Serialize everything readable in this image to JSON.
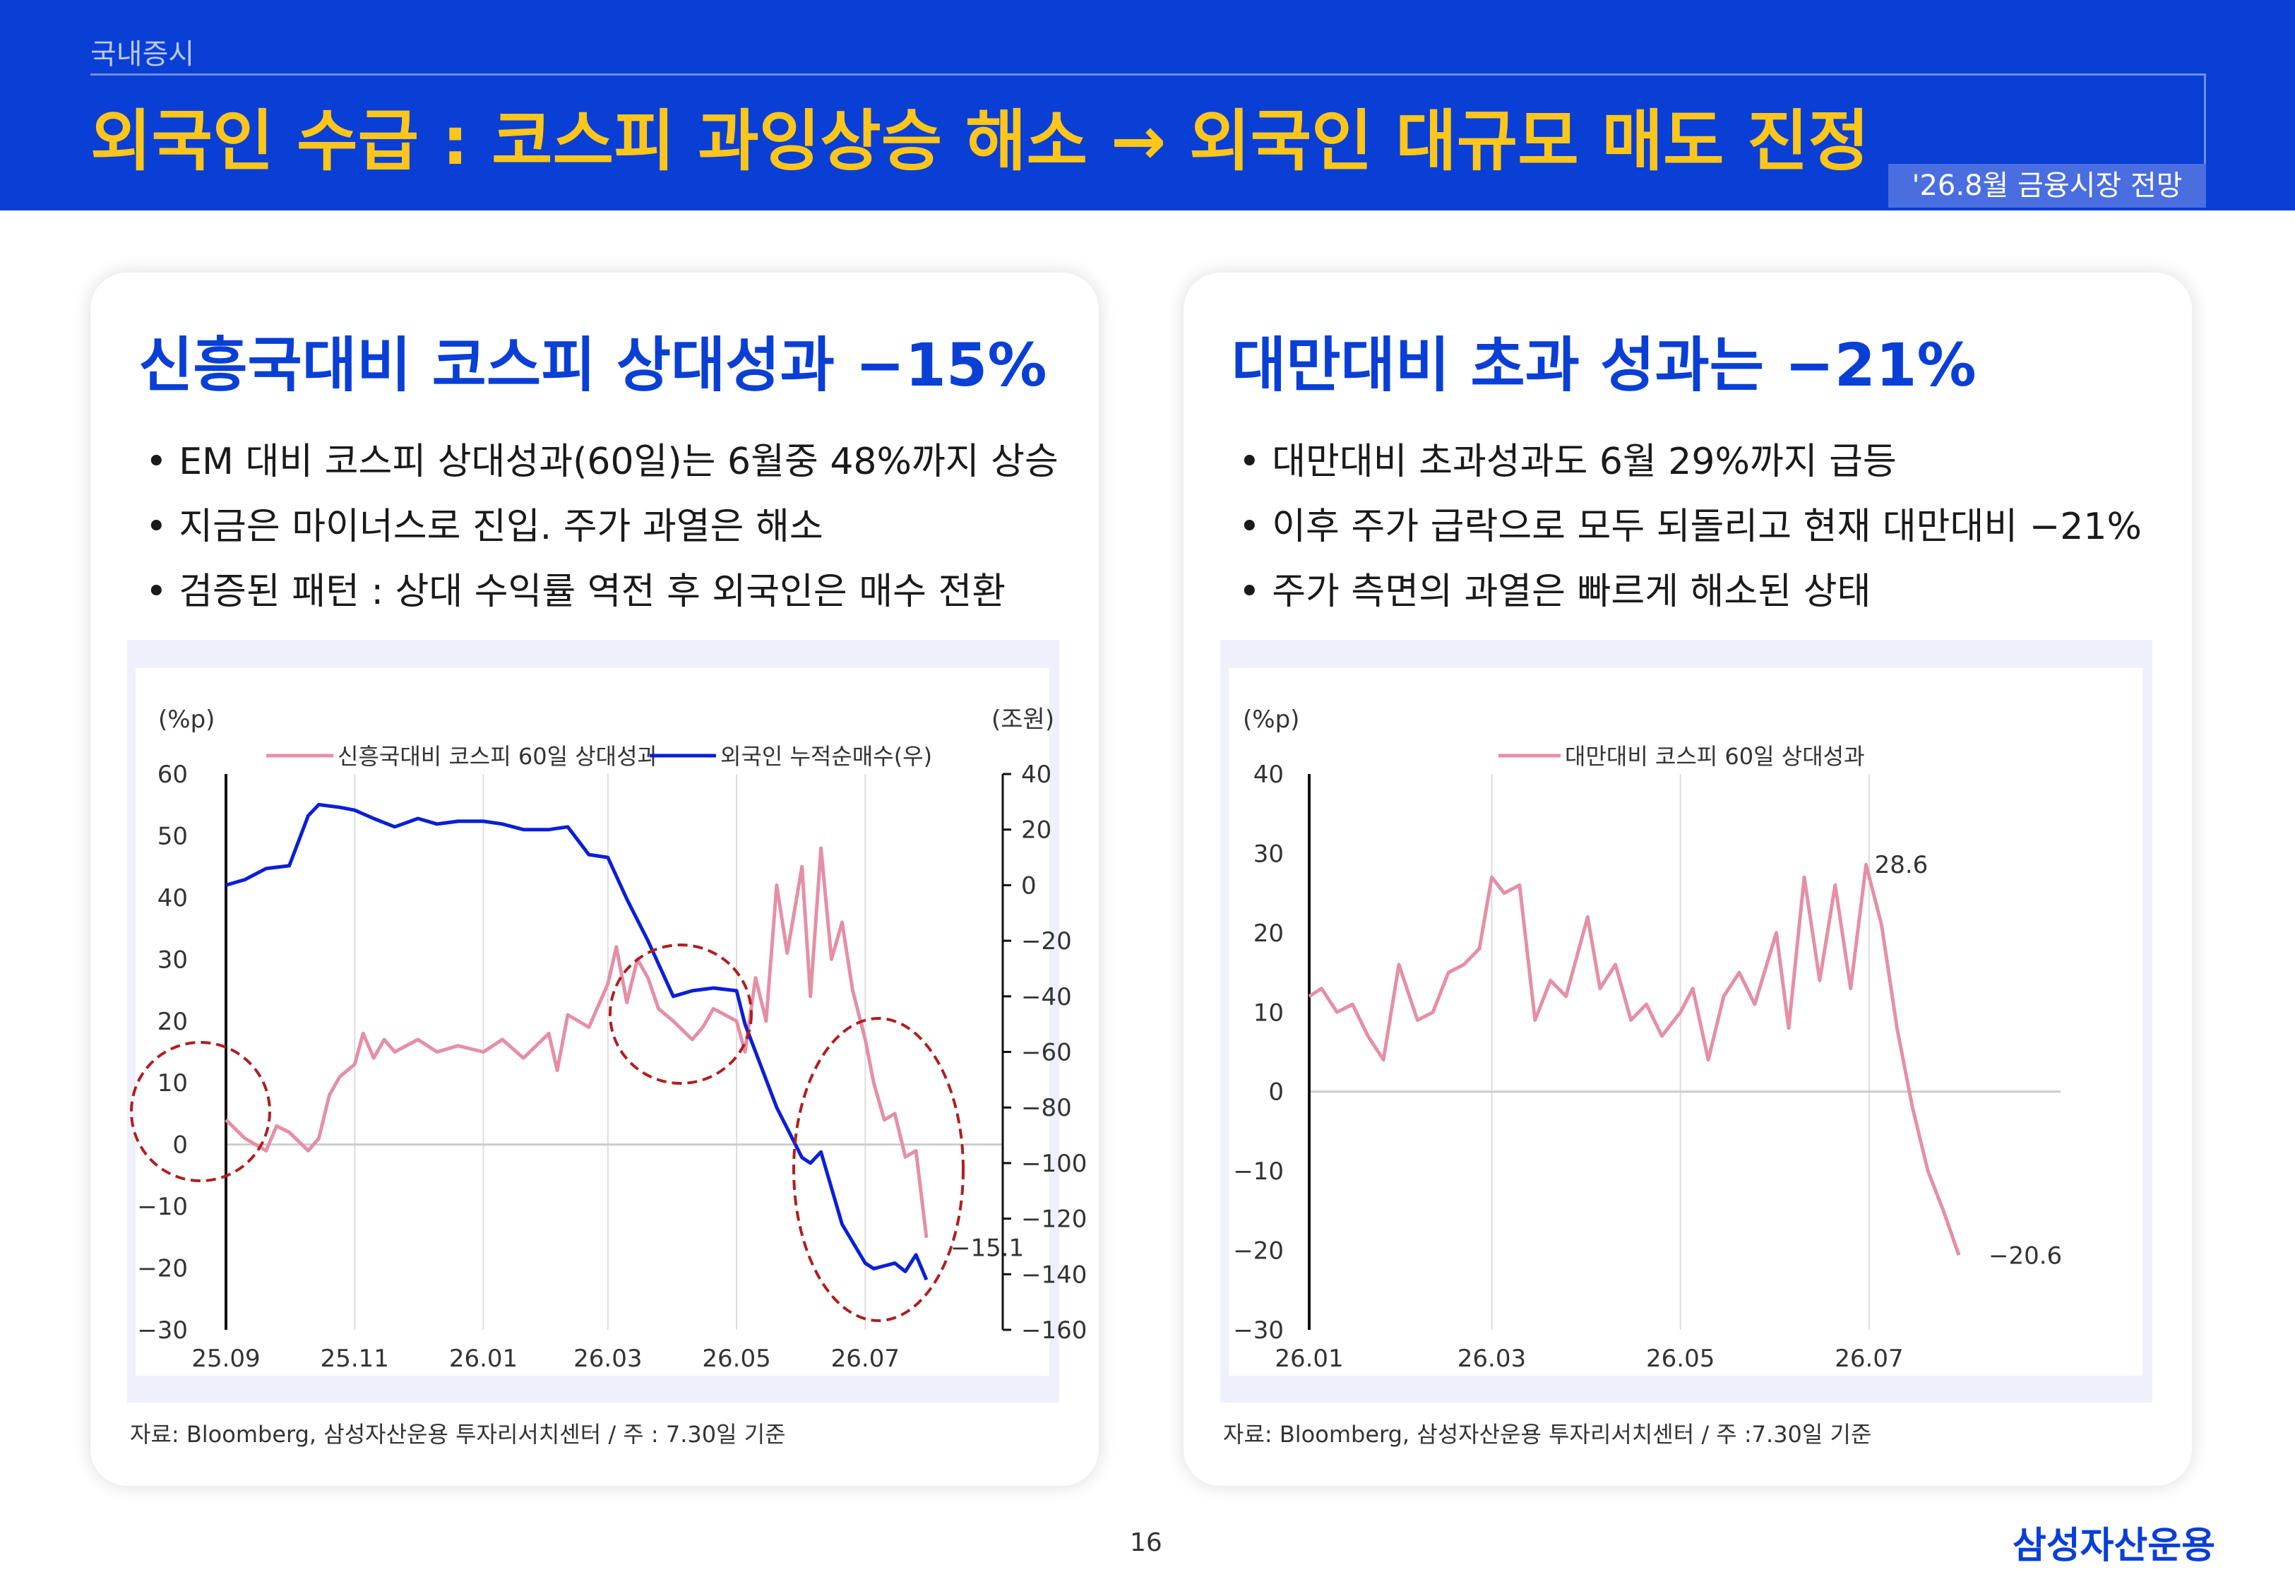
{
  "header": {
    "section": "국내증시",
    "title": "외국인 수급 : 코스피 과잉상승 해소 → 외국인 대규모 매도 진정",
    "tag": "'26.8월 금융시장 전망"
  },
  "left_card": {
    "title": "신흥국대비 코스피 상대성과 −15%",
    "bullets": [
      "EM 대비 코스피 상대성과(60일)는 6월중 48%까지 상승",
      "지금은 마이너스로 진입. 주가 과열은 해소",
      "검증된 패턴 : 상대 수익률 역전 후 외국인은 매수 전환"
    ],
    "source": "자료: Bloomberg, 삼성자산운용 투자리서치센터 / 주 : 7.30일 기준"
  },
  "right_card": {
    "title": "대만대비 초과 성과는 −21%",
    "bullets": [
      "대만대비 초과성과도 6월 29%까지 급등",
      "이후 주가 급락으로 모두 되돌리고 현재 대만대비 −21%",
      "주가 측면의 과열은 빠르게 해소된 상태"
    ],
    "source": "자료: Bloomberg, 삼성자산운용 투자리서치센터 / 주 :7.30일 기준"
  },
  "footer": {
    "page": "16",
    "logo": "삼성자산운용"
  },
  "colors": {
    "pink": "#e58fa6",
    "blue": "#0b1fd6",
    "accent": "#0a3fd6",
    "title_yellow": "#ffc61a",
    "circle": "#b01e1e"
  },
  "chart_data": [
    {
      "type": "line",
      "left_unit": "(%p)",
      "right_unit": "(조원)",
      "x_ticks": [
        "25.09",
        "25.11",
        "26.01",
        "26.03",
        "26.05",
        "26.07"
      ],
      "x_range": [
        "2025-09-01",
        "2026-07-30"
      ],
      "ylim_left": [
        -30,
        60
      ],
      "ylim_right": [
        -160,
        40
      ],
      "y_ticks_left": [
        "60",
        "50",
        "40",
        "30",
        "20",
        "10",
        "0",
        "-10",
        "-20",
        "-30"
      ],
      "y_ticks_right": [
        "40",
        "20",
        "0",
        "-20",
        "-40",
        "-60",
        "-80",
        "-100",
        "-120",
        "-140",
        "-160"
      ],
      "grid": "vertical",
      "legend_position": "top",
      "end_label": "-15.1",
      "highlight_circles": 3,
      "series": [
        {
          "name": "신흥국대비 코스피 60일 상대성과",
          "axis": "left",
          "color": "#e58fa6",
          "x": [
            "2025-09-01",
            "2025-09-10",
            "2025-09-20",
            "2025-09-25",
            "2025-10-01",
            "2025-10-10",
            "2025-10-15",
            "2025-10-20",
            "2025-10-25",
            "2025-11-01",
            "2025-11-05",
            "2025-11-10",
            "2025-11-15",
            "2025-11-20",
            "2025-12-01",
            "2025-12-10",
            "2025-12-20",
            "2026-01-01",
            "2026-01-10",
            "2026-01-20",
            "2026-02-01",
            "2026-02-05",
            "2026-02-10",
            "2026-02-20",
            "2026-03-01",
            "2026-03-05",
            "2026-03-10",
            "2026-03-15",
            "2026-03-20",
            "2026-03-25",
            "2026-04-01",
            "2026-04-10",
            "2026-04-15",
            "2026-04-20",
            "2026-05-01",
            "2026-05-05",
            "2026-05-10",
            "2026-05-15",
            "2026-05-20",
            "2026-05-25",
            "2026-06-01",
            "2026-06-05",
            "2026-06-10",
            "2026-06-15",
            "2026-06-20",
            "2026-06-25",
            "2026-07-01",
            "2026-07-05",
            "2026-07-10",
            "2026-07-15",
            "2026-07-20",
            "2026-07-25",
            "2026-07-30"
          ],
          "values": [
            4,
            1,
            -1,
            3,
            2,
            -1,
            1,
            8,
            11,
            13,
            18,
            14,
            17,
            15,
            17,
            15,
            16,
            15,
            17,
            14,
            18,
            12,
            21,
            19,
            26,
            32,
            23,
            30,
            27,
            22,
            20,
            17,
            19,
            22,
            20,
            15,
            27,
            20,
            42,
            31,
            45,
            24,
            48,
            30,
            36,
            25,
            17,
            10,
            4,
            5,
            -2,
            -1,
            -15.1
          ]
        },
        {
          "name": "외국인 누적순매수(우)",
          "axis": "right",
          "color": "#0b1fd6",
          "x": [
            "2025-09-01",
            "2025-09-10",
            "2025-09-20",
            "2025-10-01",
            "2025-10-10",
            "2025-10-15",
            "2025-10-25",
            "2025-11-01",
            "2025-11-10",
            "2025-11-20",
            "2025-12-01",
            "2025-12-10",
            "2025-12-20",
            "2026-01-01",
            "2026-01-10",
            "2026-01-20",
            "2026-02-01",
            "2026-02-10",
            "2026-02-20",
            "2026-03-01",
            "2026-03-10",
            "2026-03-20",
            "2026-04-01",
            "2026-04-10",
            "2026-04-20",
            "2026-05-01",
            "2026-05-05",
            "2026-05-10",
            "2026-05-20",
            "2026-06-01",
            "2026-06-05",
            "2026-06-10",
            "2026-06-20",
            "2026-07-01",
            "2026-07-05",
            "2026-07-10",
            "2026-07-15",
            "2026-07-20",
            "2026-07-25",
            "2026-07-30"
          ],
          "values": [
            0,
            2,
            6,
            7,
            25,
            29,
            28,
            27,
            24,
            21,
            24,
            22,
            23,
            23,
            22,
            20,
            20,
            21,
            11,
            10,
            -5,
            -20,
            -40,
            -38,
            -37,
            -38,
            -50,
            -60,
            -80,
            -98,
            -100,
            -96,
            -122,
            -136,
            -138,
            -137,
            -136,
            -139,
            -133,
            -142
          ]
        }
      ]
    },
    {
      "type": "line",
      "left_unit": "(%p)",
      "x_ticks": [
        "26.01",
        "26.03",
        "26.05",
        "26.07"
      ],
      "x_range": [
        "2026-01-01",
        "2026-07-30"
      ],
      "ylim": [
        -30,
        40
      ],
      "y_ticks": [
        "40",
        "30",
        "20",
        "10",
        "0",
        "-10",
        "-20",
        "-30"
      ],
      "grid": "vertical",
      "legend_position": "top",
      "labels": [
        "28.6",
        "-20.6"
      ],
      "series": [
        {
          "name": "대만대비 코스피 60일 상대성과",
          "color": "#e58fa6",
          "x": [
            "2026-01-01",
            "2026-01-05",
            "2026-01-10",
            "2026-01-15",
            "2026-01-20",
            "2026-01-25",
            "2026-01-30",
            "2026-02-05",
            "2026-02-10",
            "2026-02-15",
            "2026-02-20",
            "2026-02-25",
            "2026-03-01",
            "2026-03-05",
            "2026-03-10",
            "2026-03-15",
            "2026-03-20",
            "2026-03-25",
            "2026-04-01",
            "2026-04-05",
            "2026-04-10",
            "2026-04-15",
            "2026-04-20",
            "2026-04-25",
            "2026-05-01",
            "2026-05-05",
            "2026-05-10",
            "2026-05-15",
            "2026-05-20",
            "2026-05-25",
            "2026-06-01",
            "2026-06-05",
            "2026-06-10",
            "2026-06-15",
            "2026-06-20",
            "2026-06-25",
            "2026-06-30",
            "2026-07-05",
            "2026-07-10",
            "2026-07-15",
            "2026-07-20",
            "2026-07-25",
            "2026-07-30"
          ],
          "values": [
            12,
            13,
            10,
            11,
            7,
            4,
            16,
            9,
            10,
            15,
            16,
            18,
            27,
            25,
            26,
            9,
            14,
            12,
            22,
            13,
            16,
            9,
            11,
            7,
            10,
            13,
            4,
            12,
            15,
            11,
            20,
            8,
            27,
            14,
            26,
            13,
            28.6,
            21,
            8,
            -2,
            -10,
            -15,
            -20.6
          ]
        }
      ]
    }
  ]
}
